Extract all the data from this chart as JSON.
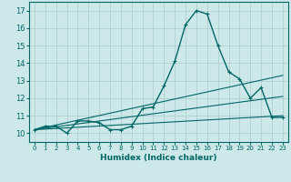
{
  "xlabel": "Humidex (Indice chaleur)",
  "ylabel": "",
  "bg_color": "#cde8e8",
  "line_color": "#006666",
  "grid_color": "#aacccc",
  "xlim": [
    -0.5,
    23.5
  ],
  "ylim": [
    9.5,
    17.5
  ],
  "xticks": [
    0,
    1,
    2,
    3,
    4,
    5,
    6,
    7,
    8,
    9,
    10,
    11,
    12,
    13,
    14,
    15,
    16,
    17,
    18,
    19,
    20,
    21,
    22,
    23
  ],
  "yticks": [
    10,
    11,
    12,
    13,
    14,
    15,
    16,
    17
  ],
  "curve1_x": [
    0,
    1,
    2,
    3,
    4,
    5,
    6,
    7,
    8,
    9,
    10,
    11,
    12,
    13,
    14,
    15,
    16,
    17,
    18,
    19,
    20,
    21,
    22,
    23
  ],
  "curve1_y": [
    10.2,
    10.4,
    10.4,
    10.0,
    10.7,
    10.7,
    10.6,
    10.2,
    10.2,
    10.4,
    11.4,
    11.5,
    12.7,
    14.1,
    16.2,
    17.0,
    16.8,
    15.0,
    13.5,
    13.1,
    12.0,
    12.6,
    10.9,
    10.9
  ],
  "line1_x": [
    0,
    23
  ],
  "line1_y": [
    10.2,
    13.3
  ],
  "line2_x": [
    0,
    23
  ],
  "line2_y": [
    10.2,
    11.0
  ],
  "line3_x": [
    0,
    23
  ],
  "line3_y": [
    10.2,
    12.1
  ]
}
